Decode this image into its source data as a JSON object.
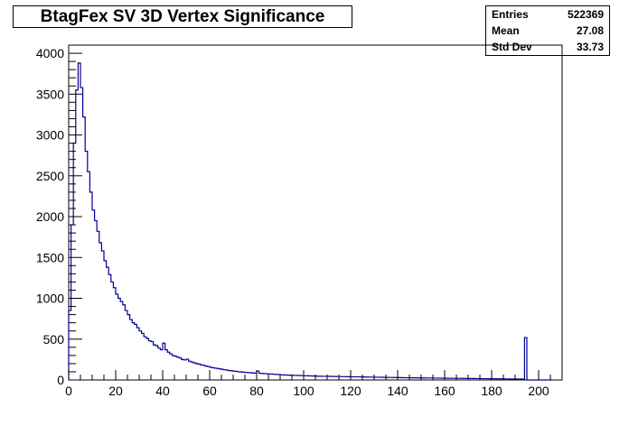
{
  "chart_data": {
    "type": "bar",
    "style": "step-histogram",
    "title": "BtagFex SV 3D Vertex Significance",
    "xlabel": "",
    "ylabel": "",
    "xlim": [
      0,
      210
    ],
    "ylim": [
      0,
      4100
    ],
    "bin_width": 1,
    "x_ticks": [
      0,
      20,
      40,
      60,
      80,
      100,
      120,
      140,
      160,
      180,
      200
    ],
    "y_ticks": [
      0,
      500,
      1000,
      1500,
      2000,
      2500,
      3000,
      3500,
      4000
    ],
    "x_tick_labels": [
      "0",
      "20",
      "40",
      "60",
      "80",
      "100",
      "120",
      "140",
      "160",
      "180",
      "200"
    ],
    "y_tick_labels": [
      "0",
      "500",
      "1000",
      "1500",
      "2000",
      "2500",
      "3000",
      "3500",
      "4000"
    ],
    "bin_centers": [
      0.5,
      1.5,
      2.5,
      3.5,
      4.5,
      5.5,
      6.5,
      7.5,
      8.5,
      9.5,
      10.5,
      11.5,
      12.5,
      13.5,
      14.5,
      15.5,
      16.5,
      17.5,
      18.5,
      19.5,
      20.5,
      21.5,
      22.5,
      23.5,
      24.5,
      25.5,
      26.5,
      27.5,
      28.5,
      29.5,
      30.5,
      31.5,
      32.5,
      33.5,
      34.5,
      35.5,
      36.5,
      37.5,
      38.5,
      39.5,
      40.5,
      41.5,
      42.5,
      43.5,
      44.5,
      45.5,
      46.5,
      47.5,
      48.5,
      49.5,
      50.5,
      51.5,
      52.5,
      53.5,
      54.5,
      55.5,
      56.5,
      57.5,
      58.5,
      59.5,
      60.5,
      61.5,
      62.5,
      63.5,
      64.5,
      65.5,
      66.5,
      67.5,
      68.5,
      69.5,
      70.5,
      71.5,
      72.5,
      73.5,
      74.5,
      75.5,
      76.5,
      77.5,
      78.5,
      79.5,
      80.5,
      81.5,
      82.5,
      83.5,
      84.5,
      85.5,
      86.5,
      87.5,
      88.5,
      89.5,
      90.5,
      91.5,
      92.5,
      93.5,
      94.5,
      95.5,
      96.5,
      97.5,
      98.5,
      99.5,
      100.5,
      101.5,
      102.5,
      103.5,
      104.5,
      105.5,
      106.5,
      107.5,
      108.5,
      109.5,
      110.5,
      111.5,
      112.5,
      113.5,
      114.5,
      115.5,
      116.5,
      117.5,
      118.5,
      119.5,
      120.5,
      121.5,
      122.5,
      123.5,
      124.5,
      125.5,
      126.5,
      127.5,
      128.5,
      129.5,
      130.5,
      131.5,
      132.5,
      133.5,
      134.5,
      135.5,
      136.5,
      137.5,
      138.5,
      139.5,
      140.5,
      141.5,
      142.5,
      143.5,
      144.5,
      145.5,
      146.5,
      147.5,
      148.5,
      149.5,
      150.5,
      151.5,
      152.5,
      153.5,
      154.5,
      155.5,
      156.5,
      157.5,
      158.5,
      159.5,
      160.5,
      161.5,
      162.5,
      163.5,
      164.5,
      165.5,
      166.5,
      167.5,
      168.5,
      169.5,
      170.5,
      171.5,
      172.5,
      173.5,
      174.5,
      175.5,
      176.5,
      177.5,
      178.5,
      179.5,
      180.5,
      181.5,
      182.5,
      183.5,
      184.5,
      185.5,
      186.5,
      187.5,
      188.5,
      189.5,
      190.5,
      191.5,
      192.5,
      193.5,
      194.5,
      195.5,
      196.5,
      197.5,
      198.5,
      199.5,
      200.5,
      201.5,
      202.5,
      203.5,
      204.5,
      205.5,
      206.5,
      207.5,
      208.5,
      209.5
    ],
    "values": [
      850,
      1900,
      2900,
      3550,
      3880,
      3580,
      3220,
      2800,
      2550,
      2300,
      2080,
      1950,
      1820,
      1680,
      1580,
      1460,
      1380,
      1290,
      1200,
      1130,
      1050,
      1000,
      960,
      920,
      850,
      800,
      740,
      700,
      680,
      640,
      600,
      570,
      530,
      510,
      480,
      470,
      430,
      420,
      390,
      370,
      450,
      370,
      340,
      320,
      300,
      290,
      280,
      270,
      250,
      245,
      255,
      230,
      220,
      210,
      200,
      195,
      185,
      180,
      170,
      165,
      155,
      150,
      145,
      140,
      135,
      130,
      125,
      120,
      115,
      112,
      108,
      105,
      100,
      98,
      95,
      92,
      90,
      88,
      86,
      84,
      110,
      82,
      80,
      78,
      76,
      74,
      72,
      70,
      68,
      66,
      64,
      62,
      60,
      59,
      58,
      57,
      56,
      55,
      54,
      53,
      52,
      51,
      50,
      49,
      48,
      47,
      46,
      46,
      45,
      45,
      44,
      44,
      43,
      43,
      42,
      42,
      41,
      41,
      40,
      40,
      39,
      39,
      38,
      38,
      37,
      37,
      36,
      36,
      35,
      35,
      34,
      34,
      33,
      33,
      32,
      32,
      31,
      31,
      30,
      30,
      29,
      29,
      28,
      28,
      27,
      27,
      26,
      26,
      26,
      25,
      25,
      25,
      24,
      24,
      24,
      23,
      23,
      23,
      22,
      22,
      22,
      21,
      21,
      21,
      20,
      20,
      20,
      19,
      19,
      19,
      18,
      18,
      18,
      17,
      17,
      17,
      16,
      16,
      16,
      15,
      15,
      15,
      14,
      14,
      14,
      13,
      13,
      13,
      12,
      12,
      12,
      12,
      11,
      11,
      520,
      0,
      0,
      0,
      0,
      0,
      0,
      0,
      0,
      0,
      0,
      0
    ]
  },
  "stats": {
    "entries_label": "Entries",
    "entries_value": "522369",
    "mean_label": "Mean",
    "mean_value": "27.08",
    "std_label": "Std Dev",
    "std_value": "33.73"
  },
  "colors": {
    "line": "#000099",
    "axis": "#000000"
  }
}
